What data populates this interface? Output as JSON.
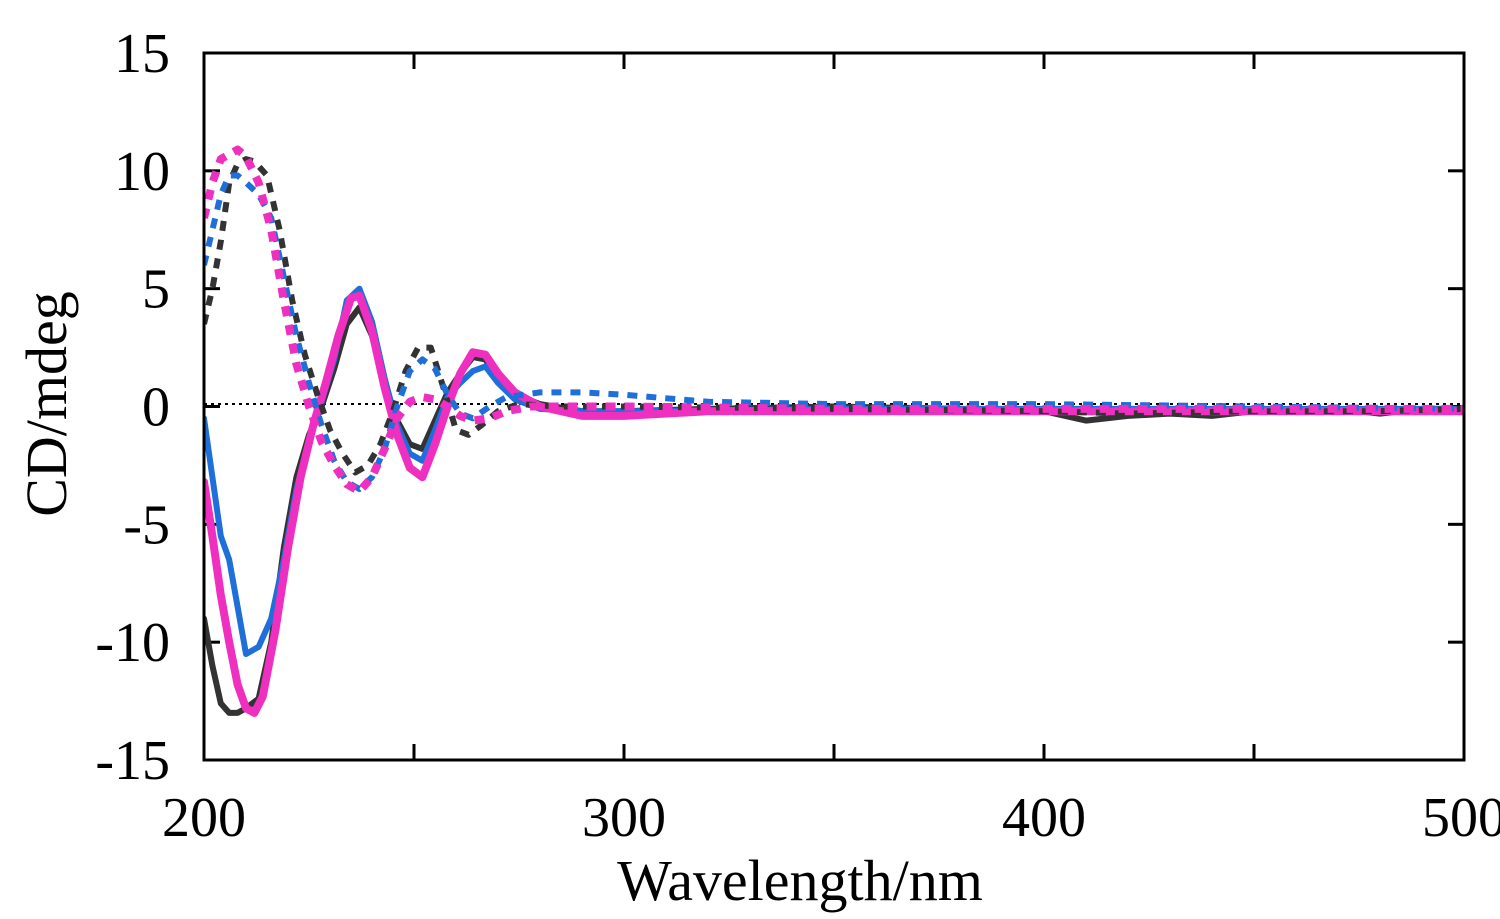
{
  "chart_data": {
    "type": "line",
    "title": "",
    "xlabel": "Wavelength/nm",
    "ylabel": "CD/mdeg",
    "xlim": [
      200,
      500
    ],
    "ylim": [
      -15,
      15
    ],
    "x_ticks": [
      200,
      300,
      400,
      500
    ],
    "y_ticks": [
      15,
      10,
      5,
      0,
      -5,
      -10,
      -15
    ],
    "x_tick_labels": [
      "200",
      "300",
      "400",
      "500"
    ],
    "y_tick_labels": [
      "15",
      "10",
      "5",
      "0",
      "-5",
      "-10",
      "-15"
    ],
    "x_minor_ticks": [
      250,
      350,
      450
    ],
    "grid": false,
    "legend": "none",
    "zero_line": true,
    "series": [
      {
        "color": "#333333",
        "style": "solid",
        "width": 6,
        "points": [
          [
            200,
            -9
          ],
          [
            202,
            -11
          ],
          [
            204,
            -12.6
          ],
          [
            206,
            -13
          ],
          [
            208,
            -13
          ],
          [
            210,
            -12.8
          ],
          [
            213,
            -12.4
          ],
          [
            216,
            -10
          ],
          [
            219,
            -6
          ],
          [
            222,
            -3
          ],
          [
            225,
            -1.2
          ],
          [
            228,
            0
          ],
          [
            231,
            1.6
          ],
          [
            234,
            3.5
          ],
          [
            237,
            4.2
          ],
          [
            240,
            3
          ],
          [
            243,
            1
          ],
          [
            246,
            -0.6
          ],
          [
            249,
            -1.6
          ],
          [
            252,
            -1.8
          ],
          [
            255,
            -0.6
          ],
          [
            258,
            0.6
          ],
          [
            261,
            1.4
          ],
          [
            264,
            2.1
          ],
          [
            267,
            2
          ],
          [
            270,
            1.2
          ],
          [
            274,
            0.5
          ],
          [
            280,
            0.1
          ],
          [
            290,
            -0.2
          ],
          [
            300,
            -0.2
          ],
          [
            320,
            -0.1
          ],
          [
            350,
            0
          ],
          [
            380,
            -0.1
          ],
          [
            400,
            -0.2
          ],
          [
            410,
            -0.6
          ],
          [
            420,
            -0.4
          ],
          [
            430,
            -0.3
          ],
          [
            440,
            -0.4
          ],
          [
            450,
            -0.2
          ],
          [
            460,
            -0.2
          ],
          [
            470,
            -0.1
          ],
          [
            480,
            -0.3
          ],
          [
            490,
            -0.1
          ],
          [
            500,
            -0.1
          ]
        ]
      },
      {
        "color": "#1e6fd9",
        "style": "solid",
        "width": 6,
        "points": [
          [
            200,
            -0.5
          ],
          [
            202,
            -3
          ],
          [
            204,
            -5.5
          ],
          [
            206,
            -6.5
          ],
          [
            208,
            -8.5
          ],
          [
            210,
            -10.5
          ],
          [
            213,
            -10.2
          ],
          [
            216,
            -9
          ],
          [
            219,
            -6.5
          ],
          [
            222,
            -3.5
          ],
          [
            225,
            -1.5
          ],
          [
            228,
            0.2
          ],
          [
            231,
            2
          ],
          [
            234,
            4.5
          ],
          [
            237,
            5
          ],
          [
            240,
            3.6
          ],
          [
            243,
            1.2
          ],
          [
            246,
            -0.8
          ],
          [
            249,
            -2
          ],
          [
            252,
            -2.3
          ],
          [
            255,
            -1
          ],
          [
            258,
            0.4
          ],
          [
            261,
            1
          ],
          [
            264,
            1.5
          ],
          [
            267,
            1.7
          ],
          [
            270,
            1
          ],
          [
            274,
            0.3
          ],
          [
            280,
            -0.1
          ],
          [
            290,
            -0.2
          ],
          [
            300,
            -0.2
          ],
          [
            350,
            -0.1
          ],
          [
            400,
            -0.1
          ],
          [
            450,
            -0.1
          ],
          [
            500,
            -0.1
          ]
        ]
      },
      {
        "color": "#ee2fc0",
        "style": "solid",
        "width": 8,
        "points": [
          [
            200,
            -3.2
          ],
          [
            202,
            -5.5
          ],
          [
            204,
            -8
          ],
          [
            206,
            -10
          ],
          [
            208,
            -11.8
          ],
          [
            210,
            -12.8
          ],
          [
            212,
            -13
          ],
          [
            214,
            -12.3
          ],
          [
            217,
            -9.5
          ],
          [
            220,
            -6
          ],
          [
            223,
            -3
          ],
          [
            226,
            -0.8
          ],
          [
            229,
            1
          ],
          [
            232,
            3
          ],
          [
            235,
            4.6
          ],
          [
            237,
            4.7
          ],
          [
            240,
            3.2
          ],
          [
            243,
            0.8
          ],
          [
            246,
            -1.2
          ],
          [
            249,
            -2.6
          ],
          [
            252,
            -3
          ],
          [
            255,
            -1.6
          ],
          [
            258,
            0
          ],
          [
            261,
            1.4
          ],
          [
            264,
            2.3
          ],
          [
            267,
            2.2
          ],
          [
            270,
            1.4
          ],
          [
            274,
            0.6
          ],
          [
            280,
            0
          ],
          [
            290,
            -0.4
          ],
          [
            300,
            -0.4
          ],
          [
            320,
            -0.2
          ],
          [
            350,
            -0.2
          ],
          [
            400,
            -0.2
          ],
          [
            450,
            -0.2
          ],
          [
            500,
            -0.2
          ]
        ]
      },
      {
        "color": "#333333",
        "style": "dashed",
        "width": 6,
        "points": [
          [
            200,
            3.5
          ],
          [
            202,
            5
          ],
          [
            204,
            7
          ],
          [
            206,
            9.5
          ],
          [
            208,
            10.3
          ],
          [
            210,
            10.5
          ],
          [
            212,
            10.4
          ],
          [
            215,
            9.8
          ],
          [
            218,
            7.5
          ],
          [
            221,
            4.5
          ],
          [
            224,
            2.2
          ],
          [
            227,
            0.5
          ],
          [
            230,
            -1
          ],
          [
            233,
            -2
          ],
          [
            236,
            -2.8
          ],
          [
            239,
            -2.5
          ],
          [
            242,
            -1.6
          ],
          [
            245,
            -0.2
          ],
          [
            248,
            1.5
          ],
          [
            251,
            2.5
          ],
          [
            254,
            2.5
          ],
          [
            257,
            0.8
          ],
          [
            260,
            -1
          ],
          [
            263,
            -1.2
          ],
          [
            266,
            -0.8
          ],
          [
            270,
            -0.2
          ],
          [
            275,
            0.1
          ],
          [
            285,
            0
          ],
          [
            300,
            0
          ],
          [
            350,
            -0.1
          ],
          [
            400,
            -0.2
          ],
          [
            420,
            -0.3
          ],
          [
            450,
            -0.2
          ],
          [
            480,
            -0.2
          ],
          [
            500,
            -0.1
          ]
        ]
      },
      {
        "color": "#1e6fd9",
        "style": "dashed",
        "width": 6,
        "points": [
          [
            200,
            6
          ],
          [
            202,
            7.5
          ],
          [
            204,
            9
          ],
          [
            206,
            9.8
          ],
          [
            208,
            9.8
          ],
          [
            210,
            9.5
          ],
          [
            213,
            9
          ],
          [
            216,
            8
          ],
          [
            219,
            5.5
          ],
          [
            222,
            3
          ],
          [
            225,
            1
          ],
          [
            228,
            -0.8
          ],
          [
            231,
            -2.3
          ],
          [
            234,
            -3.2
          ],
          [
            237,
            -3.5
          ],
          [
            240,
            -3
          ],
          [
            243,
            -1.8
          ],
          [
            246,
            0
          ],
          [
            249,
            1.5
          ],
          [
            252,
            2
          ],
          [
            255,
            1.6
          ],
          [
            258,
            0.5
          ],
          [
            261,
            -0.3
          ],
          [
            264,
            -0.5
          ],
          [
            268,
            0
          ],
          [
            272,
            0.4
          ],
          [
            280,
            0.6
          ],
          [
            290,
            0.6
          ],
          [
            300,
            0.5
          ],
          [
            320,
            0.2
          ],
          [
            350,
            0.1
          ],
          [
            400,
            0.1
          ],
          [
            450,
            0
          ],
          [
            500,
            -0.1
          ]
        ]
      },
      {
        "color": "#ee2fc0",
        "style": "dashed",
        "width": 8,
        "points": [
          [
            200,
            8
          ],
          [
            202,
            9.5
          ],
          [
            204,
            10.5
          ],
          [
            206,
            10.7
          ],
          [
            208,
            10.9
          ],
          [
            210,
            10.6
          ],
          [
            213,
            9.5
          ],
          [
            216,
            7.5
          ],
          [
            219,
            4.5
          ],
          [
            222,
            1.8
          ],
          [
            225,
            0
          ],
          [
            228,
            -1.5
          ],
          [
            231,
            -2.5
          ],
          [
            234,
            -3.3
          ],
          [
            237,
            -3.6
          ],
          [
            240,
            -3
          ],
          [
            243,
            -1.8
          ],
          [
            246,
            -0.5
          ],
          [
            249,
            0.2
          ],
          [
            252,
            0.4
          ],
          [
            255,
            0.3
          ],
          [
            258,
            0
          ],
          [
            261,
            -0.4
          ],
          [
            264,
            -0.6
          ],
          [
            268,
            -0.5
          ],
          [
            272,
            -0.2
          ],
          [
            278,
            0
          ],
          [
            290,
            0
          ],
          [
            300,
            0
          ],
          [
            350,
            -0.1
          ],
          [
            400,
            -0.1
          ],
          [
            450,
            -0.1
          ],
          [
            500,
            -0.1
          ]
        ]
      }
    ]
  }
}
